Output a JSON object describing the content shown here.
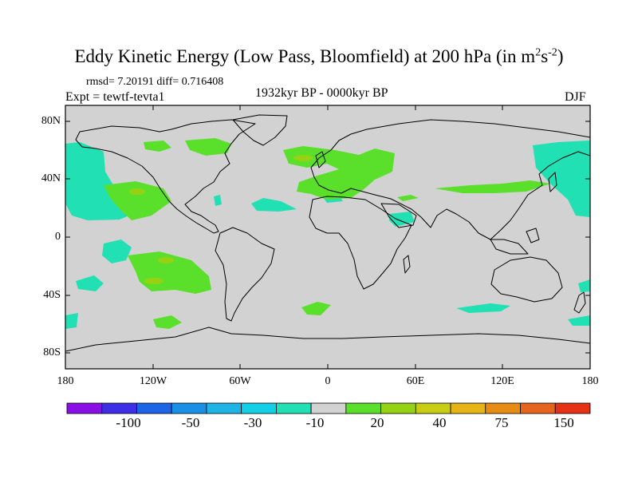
{
  "title": {
    "main": "Eddy Kinetic Energy (Low Pass, Bloomfield) at 200 hPa (in m",
    "sup1": "2",
    "mid": "s",
    "sup2": "-2",
    "end": ")"
  },
  "stats": "rmsd= 7.20191 diff= 0.716408",
  "experiment": "Expt = tewtf-tevta1",
  "period": "1932kyr BP - 0000kyr BP",
  "season": "DJF",
  "lat_labels": [
    "80N",
    "40N",
    "0",
    "40S",
    "80S"
  ],
  "lon_labels": [
    "180",
    "120W",
    "60W",
    "0",
    "60E",
    "120E",
    "180"
  ],
  "colorbar": {
    "colors": [
      "#8a0fe6",
      "#3e2ee6",
      "#1e64e6",
      "#198fe6",
      "#1eb4e6",
      "#14d0e6",
      "#20e0b4",
      "#d2d2d2",
      "#5ae02a",
      "#96d214",
      "#c8cd14",
      "#e6b414",
      "#e68c14",
      "#e6641e",
      "#e63214"
    ],
    "labels": [
      "-100",
      "-50",
      "-30",
      "-10",
      "20",
      "40",
      "75",
      "150"
    ]
  },
  "map_colors": {
    "ocean_land_fill": "#d2d2d2",
    "positive_fill": "#5ae02a",
    "negative_fill": "#20e0b4",
    "frame": "#000000"
  }
}
